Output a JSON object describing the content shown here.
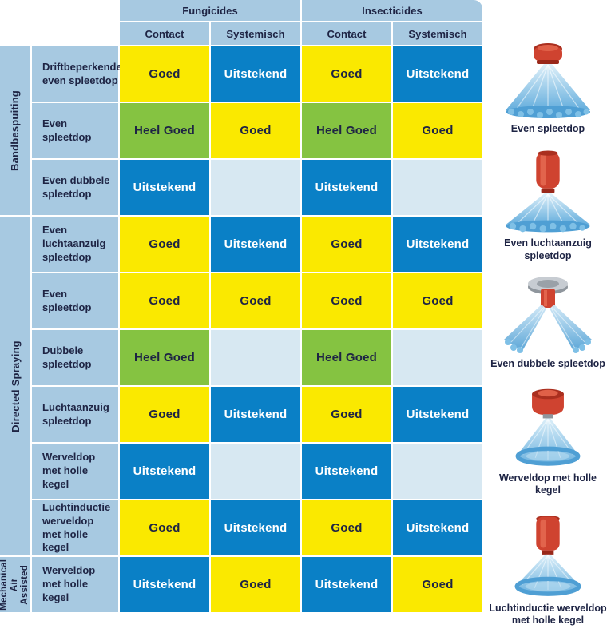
{
  "chart_data": {
    "type": "table",
    "col_groups": [
      {
        "label": "Fungicides",
        "sub": [
          "Contact",
          "Systemisch"
        ]
      },
      {
        "label": "Insecticides",
        "sub": [
          "Contact",
          "Systemisch"
        ]
      }
    ],
    "row_groups": [
      {
        "label": "Bandbespuiting",
        "row_count": 3
      },
      {
        "label": "Directed Spraying",
        "row_count": 6
      },
      {
        "label": "Mechanical Air Assisted",
        "row_count": 1
      }
    ],
    "rating_scale": [
      "Goed",
      "Heel Goed",
      "Uitstekend"
    ],
    "rows": [
      {
        "label": "Driftbeperkende even spleetdop",
        "cells": [
          "Goed",
          "Uitstekend",
          "Goed",
          "Uitstekend"
        ]
      },
      {
        "label": "Even spleetdop",
        "cells": [
          "Heel Goed",
          "Goed",
          "Heel Goed",
          "Goed"
        ]
      },
      {
        "label": "Even dubbele spleetdop",
        "cells": [
          "Uitstekend",
          "",
          "Uitstekend",
          ""
        ]
      },
      {
        "label": "Even luchtaanzuig spleetdop",
        "cells": [
          "Goed",
          "Uitstekend",
          "Goed",
          "Uitstekend"
        ]
      },
      {
        "label": "Even spleetdop",
        "cells": [
          "Goed",
          "Goed",
          "Goed",
          "Goed"
        ]
      },
      {
        "label": "Dubbele spleetdop",
        "cells": [
          "Heel Goed",
          "",
          "Heel Goed",
          ""
        ]
      },
      {
        "label": "Luchtaanzuig spleetdop",
        "cells": [
          "Goed",
          "Uitstekend",
          "Goed",
          "Uitstekend"
        ]
      },
      {
        "label": "Werveldop met holle kegel",
        "cells": [
          "Uitstekend",
          "",
          "Uitstekend",
          ""
        ]
      },
      {
        "label": "Luchtinductie werveldop met holle kegel",
        "cells": [
          "Goed",
          "Uitstekend",
          "Goed",
          "Uitstekend"
        ]
      },
      {
        "label": "Werveldop met holle kegel",
        "cells": [
          "Uitstekend",
          "Goed",
          "Uitstekend",
          "Goed"
        ]
      }
    ]
  },
  "rating_styles": {
    "Goed": {
      "bg": "#FAE900",
      "fg": "#1E2444"
    },
    "Heel Goed": {
      "bg": "#85C341",
      "fg": "#1E2444"
    },
    "Uitstekend": {
      "bg": "#0A80C6",
      "fg": "#FFFFFF"
    },
    "": {
      "bg": "#D7E8F2",
      "fg": "#1E2444"
    }
  },
  "colors": {
    "header_blue": "#A7C9E1",
    "empty_cell_blue": "#D7E8F2",
    "text_navy": "#1E2444",
    "nozzle_red": "#CF4330",
    "spray_blue": "#4F9FD4"
  },
  "gallery": {
    "items": [
      {
        "caption": "Even spleetdop",
        "type": "flat-fan"
      },
      {
        "caption": "Even luchtaanzuig spleetdop",
        "type": "flat-fan-tall"
      },
      {
        "caption": "Even dubbele spleetdop",
        "type": "double-fan"
      },
      {
        "caption": "Werveldop met holle kegel",
        "type": "hollow-cone"
      },
      {
        "caption": "Luchtinductie werveldop met holle kegel",
        "type": "hollow-cone-tall"
      }
    ]
  }
}
